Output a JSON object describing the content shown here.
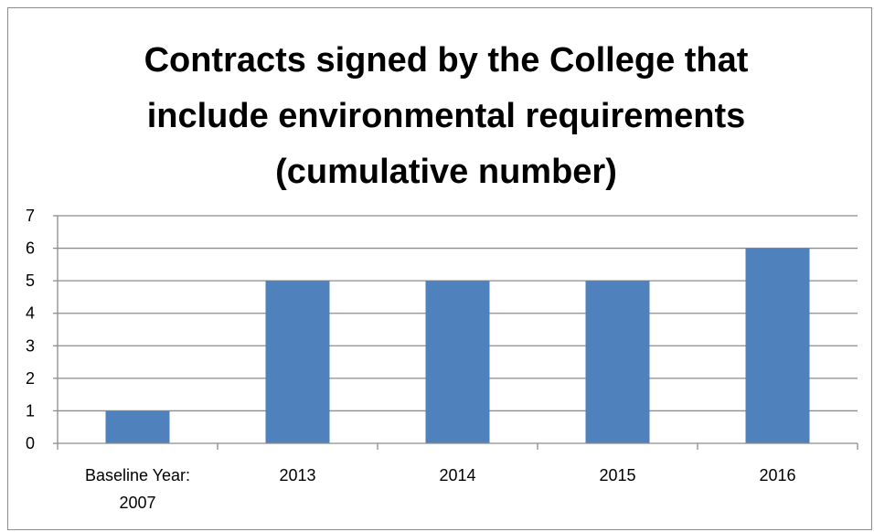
{
  "chart_data": {
    "type": "bar",
    "title_lines": [
      "Contracts signed by the College that",
      "include environmental requirements",
      "(cumulative number)"
    ],
    "categories": [
      [
        "Baseline Year:",
        "2007"
      ],
      [
        "2013"
      ],
      [
        "2014"
      ],
      [
        "2015"
      ],
      [
        "2016"
      ]
    ],
    "values": [
      1,
      5,
      5,
      5,
      6
    ],
    "ylim": [
      0,
      7
    ],
    "yticks": [
      "0",
      "1",
      "2",
      "3",
      "4",
      "5",
      "6",
      "7"
    ],
    "xlabel": "",
    "ylabel": "",
    "grid": true,
    "legend": "none",
    "bar_color": "#4f81bd",
    "grid_color": "#8c8c8c"
  }
}
